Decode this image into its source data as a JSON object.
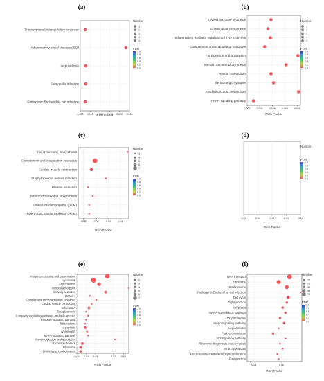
{
  "colors": {
    "point": "#f2585b",
    "grid": "#ebebeb",
    "frame": "#4d4d4d",
    "gradient": [
      "#3b3bc4",
      "#2f9fd8",
      "#3cc56c",
      "#b6d53e",
      "#f2585b"
    ]
  },
  "chart_data": [
    {
      "type": "scatter",
      "title": "(a)",
      "xlabel": "Rich Factor",
      "xlim": [
        0,
        0.025
      ],
      "xticks": [
        "0.000",
        "0.005",
        "0.010",
        "0.015",
        "0.020",
        "0.025"
      ],
      "categories": [
        "Transcriptional misregulation in cancer",
        "Inflammatory bowel disease (IBD)",
        "Legionellosis",
        "Salmonella infection",
        "Pathogenic Escherichia coli infection"
      ],
      "values": [
        0.0025,
        0.0232,
        0.0028,
        0.0028,
        0.0025
      ],
      "size": [
        1,
        1,
        1,
        1,
        1
      ],
      "legend": {
        "size_title": "Number",
        "size_labels": [
          "1",
          "1",
          "1",
          "1",
          "1"
        ],
        "color_title": "FDR",
        "color_labels": [
          "1.0",
          "0.8",
          "0.6",
          "0.4",
          "0.2",
          "0.0"
        ]
      }
    },
    {
      "type": "scatter",
      "title": "(b)",
      "xlabel": "Rich Factor",
      "xlim": [
        0.002,
        0.0105
      ],
      "xticks": [
        "0.002",
        "0.004",
        "0.006",
        "0.008",
        "0.010"
      ],
      "categories": [
        "Thyroid hormone synthesis",
        "Chemical carcinogenesis",
        "Inflammatory mediator regulation of TRP channels",
        "Complement and coagulation cascades",
        "Fat digestion and absorption",
        "Steroid hormone biosynthesis",
        "Retinol metabolism",
        "Serotonergic synapse",
        "Arachidonic acid metabolism",
        "PPAR signaling pathway"
      ],
      "values": [
        0.0058,
        0.0053,
        0.0057,
        0.0048,
        0.0101,
        0.0082,
        0.0058,
        0.0062,
        0.0102,
        0.003
      ],
      "size": [
        1,
        1,
        1,
        1,
        1,
        1,
        1,
        1,
        1,
        1
      ],
      "legend": {
        "size_title": "Number",
        "size_labels": [
          "1",
          "1",
          "1",
          "1",
          "1"
        ],
        "color_title": "FDR",
        "color_labels": [
          "1.0",
          "0.8",
          "0.6",
          "0.4",
          "0.2",
          "0.0"
        ]
      }
    },
    {
      "type": "scatter",
      "title": "(c)",
      "xlabel": "Rich Factor",
      "xlim": [
        0.005,
        0.047
      ],
      "xticks": [
        "0.00",
        "0.01",
        "0.02",
        "0.03",
        "0.04"
      ],
      "categories": [
        "Insect hormone biosynthesis",
        "Complement and coagulation cascades",
        "Cardiac muscle contraction",
        "Staphylococcus aureus infection",
        "Platelet activation",
        "Terpenoid backbone biosynthesis",
        "Dilated cardiomyopathy (DCM)",
        "Hypertrophic cardiomyopathy (HCM)"
      ],
      "values": [
        0.046,
        0.019,
        0.016,
        0.028,
        0.013,
        0.017,
        0.014,
        0.014
      ],
      "size": [
        3,
        5,
        4,
        3,
        3,
        3,
        3,
        3
      ],
      "legend": {
        "size_title": "Number",
        "size_labels": [
          "3",
          "4",
          "5",
          "6",
          "7"
        ],
        "color_title": "FDR",
        "color_labels": [
          "1.0",
          "0.8",
          "0.6",
          "0.4",
          "0.2",
          "0.0"
        ]
      }
    },
    {
      "type": "scatter",
      "title": "(d)",
      "xlabel": "Rich Factor",
      "xlim": [
        0,
        0.04
      ],
      "xticks": [
        "0.00",
        "0.01",
        "0.02",
        "0.03",
        "0.04"
      ],
      "categories": [],
      "values": [],
      "size": [],
      "legend": {
        "size_title": "Number",
        "size_labels": [],
        "color_title": "FDR",
        "color_labels": [
          "1.0",
          "0.8",
          "0.6",
          "0.4",
          "0.2",
          "0.0"
        ]
      }
    },
    {
      "type": "scatter",
      "title": "(e)",
      "xlabel": "Rich Factor",
      "xlim": [
        0.03,
        0.086
      ],
      "xticks": [
        "0.05",
        "0.04",
        "0.03",
        "0.02",
        "0.01"
      ],
      "categories": [
        "Antigen processing and presentation",
        "Lysosome",
        "Legionellosis",
        "Mineral absorption",
        "Salivary secretion",
        "Measles",
        "Complement and coagulation cascades",
        "Cardiac muscle contraction",
        "Influenza A",
        "Toxoplasmosis",
        "Longevity regulating pathway - multiple species",
        "Estrogen signaling pathway",
        "Tuberculosis",
        "Apoptosis",
        "Amoebiasis",
        "MAPK signaling pathway",
        "Vitamin digestion and absorption",
        "Parkinson disease",
        "Ribosome",
        "Oxidative phosphorylation"
      ],
      "values": [
        0.063,
        0.048,
        0.054,
        0.086,
        0.061,
        0.044,
        0.051,
        0.046,
        0.043,
        0.04,
        0.042,
        0.04,
        0.039,
        0.039,
        0.041,
        0.042,
        0.071,
        0.036,
        0.034,
        0.034
      ],
      "size": [
        5,
        5,
        4,
        2,
        3,
        2,
        2,
        2,
        3,
        2,
        2,
        2,
        2,
        3,
        2,
        2,
        2,
        3,
        3,
        3
      ],
      "legend": {
        "size_title": "Number",
        "size_labels": [
          "2",
          "3",
          "4",
          "5",
          "6",
          "7"
        ],
        "color_title": "FDR",
        "color_labels": [
          "1.0",
          "0.8",
          "0.6",
          "0.4",
          "0.2",
          "0.0"
        ]
      }
    },
    {
      "type": "scatter",
      "title": "(f)",
      "xlabel": "Rich Factor",
      "xlim": [
        0.035,
        0.075
      ],
      "xticks": [
        "0.04",
        "0.06"
      ],
      "categories": [
        "RNA transport",
        "Ribosome",
        "Spliceosome",
        "Pathogenic Escherichia coli infection",
        "Cell cycle",
        "Tight junction",
        "Apoptosis",
        "mRNA surveillance pathway",
        "Oocyte meiosis",
        "Hippo signaling pathway",
        "Legionellosis",
        "Parkinson disease",
        "p53 signaling pathway",
        "Ribosome biogenesis in eukaryotes",
        "Viral myocarditis",
        "Progesterone-mediated oocyte maturation",
        "Gap junction"
      ],
      "values": [
        0.066,
        0.058,
        0.064,
        0.074,
        0.065,
        0.064,
        0.061,
        0.063,
        0.059,
        0.062,
        0.058,
        0.054,
        0.063,
        0.059,
        0.061,
        0.057,
        0.058
      ],
      "size": [
        70,
        55,
        55,
        10,
        40,
        25,
        25,
        25,
        25,
        25,
        10,
        25,
        10,
        10,
        10,
        10,
        10
      ],
      "legend": {
        "size_title": "Number",
        "size_labels": [
          "10",
          "25",
          "40",
          "55",
          "70"
        ],
        "color_title": "FDR",
        "color_labels": [
          "1.0",
          "0.8",
          "0.6",
          "0.4",
          "0.2",
          "0.0"
        ]
      }
    }
  ]
}
